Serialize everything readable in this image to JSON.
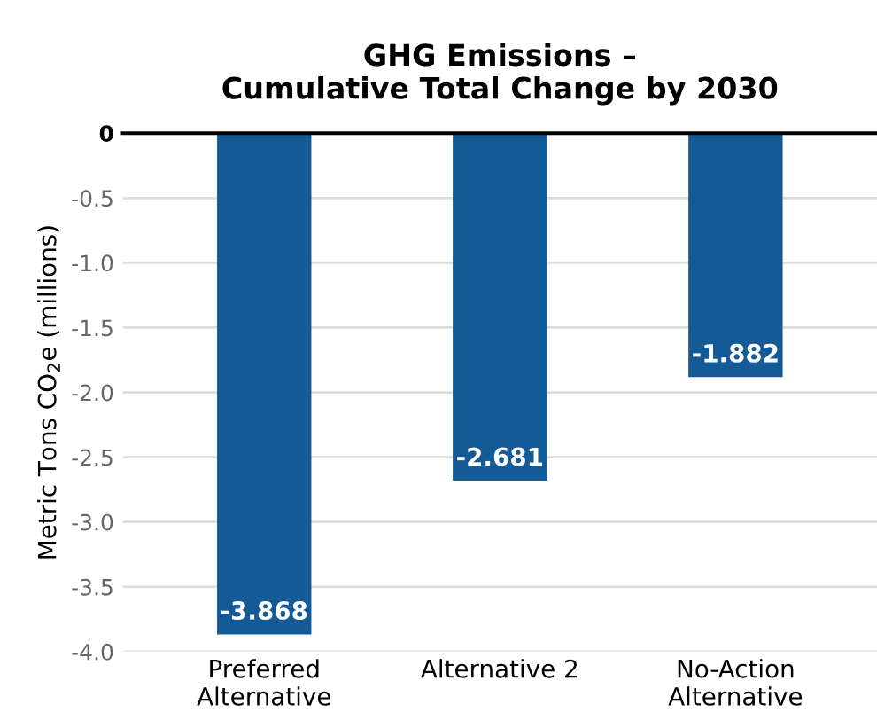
{
  "chart_data": {
    "type": "bar",
    "title": "GHG Emissions –\nCumulative Total Change by 2030",
    "ylabel": "Metric Tons CO$_{2}$e (millions)",
    "categories": [
      "Preferred\nAlternative",
      "Alternative 2",
      "No-Action\nAlternative"
    ],
    "values": [
      -3.868,
      -2.681,
      -1.882
    ],
    "color": "#135a96",
    "ylim": [
      -4.0,
      0
    ],
    "yticks": [
      0,
      -0.5,
      {
        "value": -1,
        "label": "-1.0"
      },
      -1.5,
      {
        "value": -2,
        "label": "-2.0"
      },
      -2.5,
      {
        "value": -3,
        "label": "-3.0"
      },
      -3.5,
      {
        "value": -4,
        "label": "-4.0"
      }
    ],
    "grid": "y",
    "data_labels": true,
    "legend": false
  }
}
